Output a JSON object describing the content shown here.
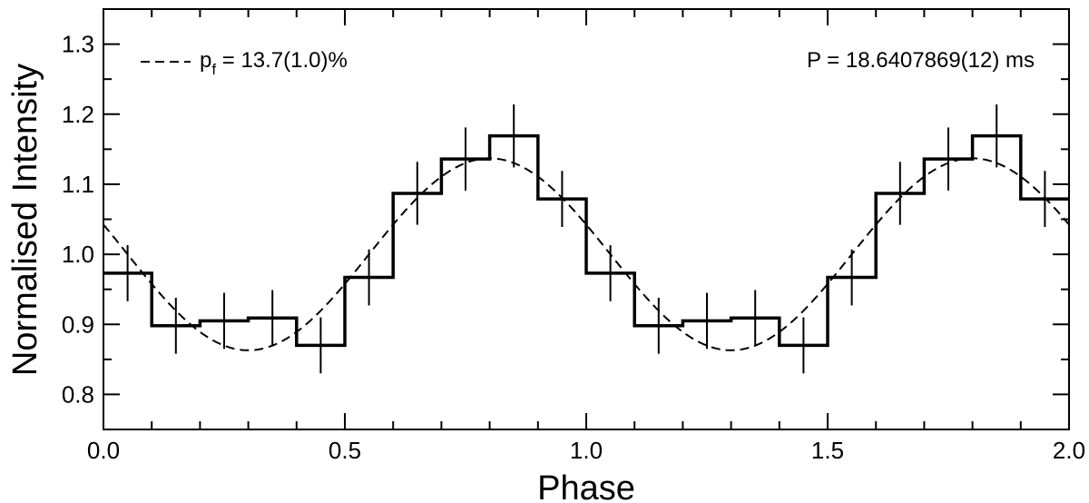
{
  "chart_data": {
    "type": "line",
    "title": "",
    "xlabel": "Phase",
    "ylabel": "Normalised Intensity",
    "xlim": [
      0.0,
      2.0
    ],
    "ylim": [
      0.75,
      1.35
    ],
    "xticks": [
      "0.0",
      "0.5",
      "1.0",
      "1.5",
      "2.0"
    ],
    "yticks": [
      "0.8",
      "0.9",
      "1.0",
      "1.1",
      "1.2",
      "1.3"
    ],
    "grid": false,
    "legend": {
      "placement": "top-left",
      "symbol": "p",
      "subscript": "f",
      "text": " = 13.7(1.0)%"
    },
    "annotation": {
      "placement": "top-right",
      "text": "P = 18.6407869(12) ms"
    },
    "histogram": {
      "style": "step",
      "color": "#000000",
      "bin_width": 0.1,
      "bin_centers": [
        0.05,
        0.15,
        0.25,
        0.35,
        0.45,
        0.55,
        0.65,
        0.75,
        0.85,
        0.95,
        1.05,
        1.15,
        1.25,
        1.35,
        1.45,
        1.55,
        1.65,
        1.75,
        1.85,
        1.95
      ],
      "values": [
        0.973,
        0.898,
        0.905,
        0.909,
        0.87,
        0.967,
        1.087,
        1.136,
        1.169,
        1.079,
        0.973,
        0.898,
        0.905,
        0.909,
        0.87,
        0.967,
        1.087,
        1.136,
        1.169,
        1.079
      ],
      "errors": [
        0.04,
        0.04,
        0.04,
        0.04,
        0.04,
        0.04,
        0.045,
        0.045,
        0.045,
        0.04,
        0.04,
        0.04,
        0.04,
        0.04,
        0.04,
        0.04,
        0.045,
        0.045,
        0.045,
        0.04
      ]
    },
    "model": {
      "style": "dashed",
      "color": "#000000",
      "function": "sinusoid",
      "mean": 1.0,
      "amplitude": 0.137,
      "peak_phase": 0.8,
      "period": 1.0
    }
  }
}
